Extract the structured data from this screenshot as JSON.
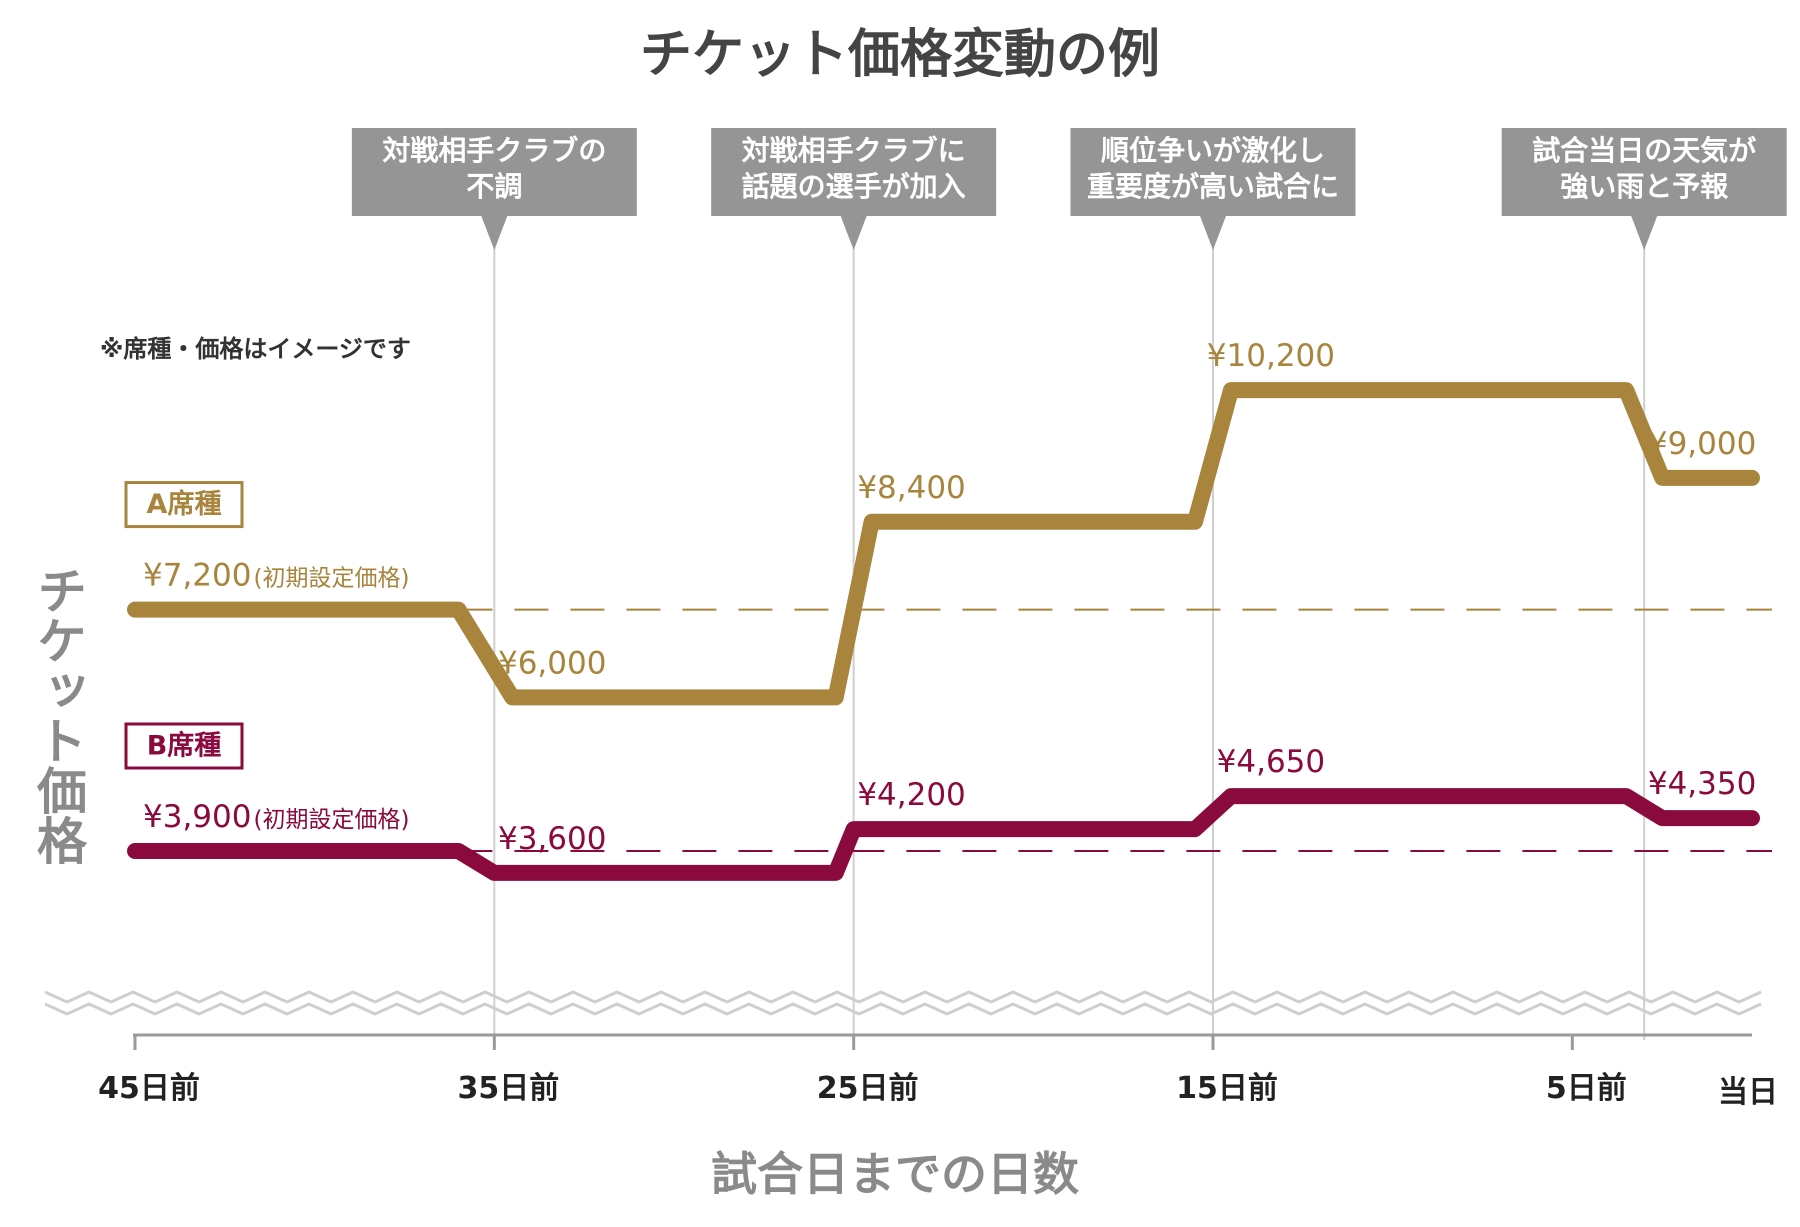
{
  "chart_data": {
    "type": "line",
    "title": "チケット価格変動の例",
    "xlabel": "試合日までの日数",
    "ylabel": "チケット価格",
    "note": "※席種・価格はイメージです",
    "x_ticks": [
      {
        "day": 45,
        "label": "45日前"
      },
      {
        "day": 35,
        "label": "35日前"
      },
      {
        "day": 25,
        "label": "25日前"
      },
      {
        "day": 15,
        "label": "15日前"
      },
      {
        "day": 5,
        "label": "5日前"
      },
      {
        "day": 0,
        "label": "当日"
      }
    ],
    "xlim": [
      45,
      0
    ],
    "ylim": [
      2000,
      11500
    ],
    "annotations": [
      {
        "day": 35,
        "lines": [
          "対戦相手クラブの",
          "不調"
        ]
      },
      {
        "day": 25,
        "lines": [
          "対戦相手クラブに",
          "話題の選手が加入"
        ]
      },
      {
        "day": 15,
        "lines": [
          "順位争いが激化し",
          "重要度が高い試合に"
        ]
      },
      {
        "day": 3,
        "lines": [
          "試合当日の天気が",
          "強い雨と予報"
        ]
      }
    ],
    "series": [
      {
        "name": "A席種",
        "color": "#a8843c",
        "initial_price": 7200,
        "initial_label": "¥7,200",
        "initial_suffix": "(初期設定価格)",
        "points": [
          {
            "day": 45,
            "value": 7200
          },
          {
            "day": 36,
            "value": 7200
          },
          {
            "day": 34.5,
            "value": 6000
          },
          {
            "day": 25.5,
            "value": 6000
          },
          {
            "day": 24.5,
            "value": 8400
          },
          {
            "day": 15.5,
            "value": 8400
          },
          {
            "day": 14.5,
            "value": 10200
          },
          {
            "day": 3.5,
            "value": 10200
          },
          {
            "day": 2.5,
            "value": 9000
          },
          {
            "day": 0,
            "value": 9000
          }
        ],
        "labels": [
          {
            "day": 33.5,
            "value": 6000,
            "text": "¥6,000"
          },
          {
            "day": 23.5,
            "value": 8400,
            "text": "¥8,400"
          },
          {
            "day": 13.5,
            "value": 10200,
            "text": "¥10,200"
          },
          {
            "day": 1.5,
            "value": 9000,
            "text": "¥9,000"
          }
        ]
      },
      {
        "name": "B席種",
        "color": "#8b0a3e",
        "initial_price": 3900,
        "initial_label": "¥3,900",
        "initial_suffix": "(初期設定価格)",
        "points": [
          {
            "day": 45,
            "value": 3900
          },
          {
            "day": 36,
            "value": 3900
          },
          {
            "day": 35,
            "value": 3600
          },
          {
            "day": 25.5,
            "value": 3600
          },
          {
            "day": 25,
            "value": 4200
          },
          {
            "day": 15.5,
            "value": 4200
          },
          {
            "day": 14.5,
            "value": 4650
          },
          {
            "day": 3.5,
            "value": 4650
          },
          {
            "day": 2.5,
            "value": 4350
          },
          {
            "day": 0,
            "value": 4350
          }
        ],
        "labels": [
          {
            "day": 33.5,
            "value": 3600,
            "text": "¥3,600"
          },
          {
            "day": 23.5,
            "value": 4200,
            "text": "¥4,200"
          },
          {
            "day": 13.5,
            "value": 4650,
            "text": "¥4,650"
          },
          {
            "day": 1.5,
            "value": 4350,
            "text": "¥4,350"
          }
        ]
      }
    ]
  }
}
